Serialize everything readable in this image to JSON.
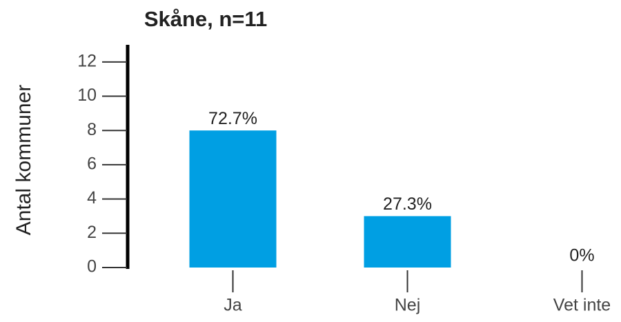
{
  "chart_data": {
    "type": "bar",
    "title": "Skåne, n=11",
    "y_label": "Antal kommuner",
    "categories": [
      "Ja",
      "Nej",
      "Vet inte"
    ],
    "values": [
      8,
      3,
      0
    ],
    "annotations": [
      "72.7%",
      "27.3%",
      "0%"
    ],
    "color": "#009fe3",
    "ylim": [
      0,
      13
    ],
    "yticks": [
      0,
      2,
      4,
      6,
      8,
      10,
      12
    ],
    "grid": false
  }
}
